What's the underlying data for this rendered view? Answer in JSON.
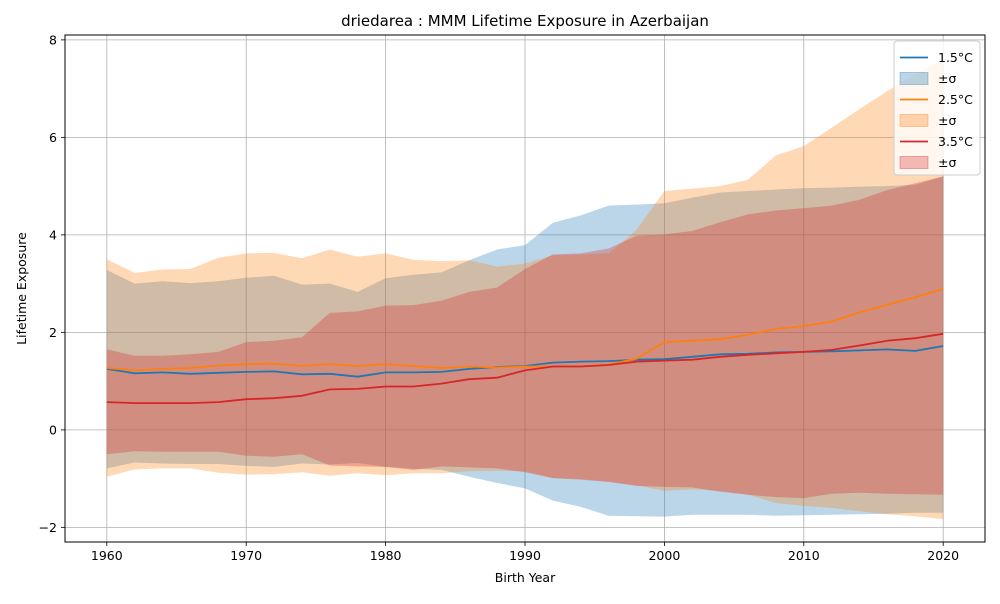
{
  "chart_data": {
    "type": "line",
    "title": "driedarea : MMM Lifetime Exposure in Azerbaijan",
    "xlabel": "Birth Year",
    "ylabel": "Lifetime Exposure",
    "xlim": [
      1957,
      2023
    ],
    "ylim": [
      -2.3,
      8.1
    ],
    "x_ticks": [
      1960,
      1970,
      1980,
      1990,
      2000,
      2010,
      2020
    ],
    "y_ticks": [
      -2,
      0,
      2,
      4,
      6,
      8
    ],
    "x_tick_labels": [
      "1960",
      "1970",
      "1980",
      "1990",
      "2000",
      "2010",
      "2020"
    ],
    "y_tick_labels": [
      "−2",
      "0",
      "2",
      "4",
      "6",
      "8"
    ],
    "grid": true,
    "legend_position": "top-right",
    "x": [
      1960,
      1962,
      1964,
      1966,
      1968,
      1970,
      1972,
      1974,
      1976,
      1978,
      1980,
      1982,
      1984,
      1986,
      1988,
      1990,
      1992,
      1994,
      1996,
      1998,
      2000,
      2002,
      2004,
      2006,
      2008,
      2010,
      2012,
      2014,
      2016,
      2018,
      2020
    ],
    "series": [
      {
        "name": "1.5°C",
        "band_label": "±σ",
        "color": "#1f77b4",
        "values": [
          1.25,
          1.16,
          1.18,
          1.15,
          1.17,
          1.19,
          1.2,
          1.14,
          1.15,
          1.09,
          1.18,
          1.18,
          1.19,
          1.25,
          1.29,
          1.31,
          1.38,
          1.4,
          1.41,
          1.44,
          1.45,
          1.5,
          1.55,
          1.56,
          1.59,
          1.6,
          1.61,
          1.63,
          1.65,
          1.62,
          1.72
        ],
        "upper": [
          3.28,
          3.0,
          3.05,
          3.01,
          3.05,
          3.12,
          3.16,
          2.98,
          3.0,
          2.83,
          3.11,
          3.18,
          3.23,
          3.48,
          3.7,
          3.79,
          4.25,
          4.4,
          4.6,
          4.62,
          4.65,
          4.76,
          4.87,
          4.9,
          4.93,
          4.96,
          4.97,
          4.99,
          5.0,
          5.03,
          5.2
        ],
        "lower": [
          -0.79,
          -0.67,
          -0.69,
          -0.7,
          -0.7,
          -0.74,
          -0.76,
          -0.69,
          -0.71,
          -0.68,
          -0.76,
          -0.8,
          -0.82,
          -0.96,
          -1.09,
          -1.2,
          -1.45,
          -1.58,
          -1.76,
          -1.77,
          -1.78,
          -1.74,
          -1.74,
          -1.74,
          -1.76,
          -1.75,
          -1.74,
          -1.73,
          -1.72,
          -1.7,
          -1.7
        ]
      },
      {
        "name": "2.5°C",
        "band_label": "±σ",
        "color": "#ff7f0e",
        "values": [
          1.27,
          1.22,
          1.25,
          1.27,
          1.32,
          1.35,
          1.36,
          1.31,
          1.35,
          1.31,
          1.35,
          1.31,
          1.27,
          1.3,
          1.28,
          1.3,
          1.3,
          1.3,
          1.34,
          1.46,
          1.8,
          1.83,
          1.86,
          1.95,
          2.07,
          2.13,
          2.22,
          2.41,
          2.57,
          2.72,
          2.89
        ],
        "upper": [
          3.5,
          3.22,
          3.29,
          3.3,
          3.53,
          3.62,
          3.63,
          3.52,
          3.7,
          3.55,
          3.62,
          3.49,
          3.46,
          3.48,
          3.35,
          3.41,
          3.58,
          3.6,
          3.62,
          4.1,
          4.9,
          4.95,
          5.0,
          5.13,
          5.63,
          5.82,
          6.2,
          6.58,
          6.95,
          7.3,
          7.6
        ],
        "lower": [
          -0.96,
          -0.81,
          -0.79,
          -0.79,
          -0.88,
          -0.92,
          -0.91,
          -0.87,
          -0.94,
          -0.89,
          -0.93,
          -0.89,
          -0.89,
          -0.85,
          -0.84,
          -0.85,
          -0.99,
          -1.01,
          -1.06,
          -1.14,
          -1.25,
          -1.22,
          -1.25,
          -1.33,
          -1.5,
          -1.56,
          -1.6,
          -1.67,
          -1.73,
          -1.77,
          -1.83
        ]
      },
      {
        "name": "3.5°C",
        "band_label": "±σ",
        "color": "#d62728",
        "values": [
          0.57,
          0.55,
          0.55,
          0.55,
          0.57,
          0.63,
          0.65,
          0.7,
          0.83,
          0.84,
          0.89,
          0.89,
          0.95,
          1.04,
          1.07,
          1.22,
          1.3,
          1.3,
          1.33,
          1.4,
          1.42,
          1.44,
          1.5,
          1.54,
          1.57,
          1.6,
          1.64,
          1.73,
          1.83,
          1.88,
          1.97
        ],
        "upper": [
          1.65,
          1.52,
          1.52,
          1.55,
          1.6,
          1.8,
          1.83,
          1.9,
          2.4,
          2.43,
          2.55,
          2.56,
          2.65,
          2.83,
          2.92,
          3.3,
          3.6,
          3.62,
          3.72,
          3.98,
          4.01,
          4.08,
          4.26,
          4.42,
          4.5,
          4.55,
          4.6,
          4.72,
          4.92,
          5.06,
          5.2
        ],
        "lower": [
          -0.5,
          -0.44,
          -0.45,
          -0.45,
          -0.45,
          -0.53,
          -0.55,
          -0.5,
          -0.73,
          -0.75,
          -0.76,
          -0.82,
          -0.75,
          -0.77,
          -0.79,
          -0.87,
          -0.99,
          -1.02,
          -1.07,
          -1.15,
          -1.17,
          -1.18,
          -1.27,
          -1.33,
          -1.38,
          -1.4,
          -1.31,
          -1.29,
          -1.31,
          -1.32,
          -1.33
        ]
      }
    ]
  }
}
